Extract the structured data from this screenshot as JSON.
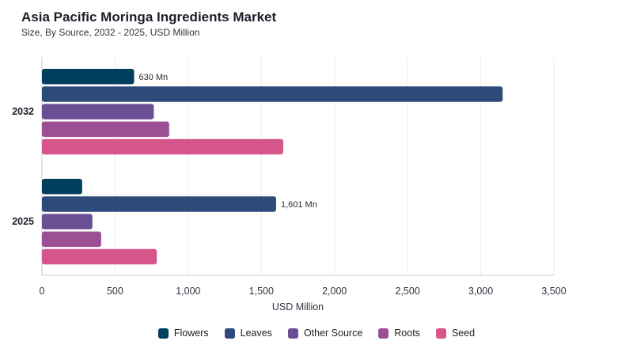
{
  "chart_data": {
    "type": "bar",
    "orientation": "horizontal",
    "title": "Asia Pacific Moringa Ingredients Market",
    "subtitle": "Size, By Source, 2032 - 2025, USD Million",
    "xlabel": "USD Million",
    "ylabel": "",
    "xlim": [
      0,
      3500
    ],
    "xticks": [
      "0",
      "500",
      "1,000",
      "1,500",
      "2,000",
      "2,500",
      "3,000",
      "3,500"
    ],
    "grid": true,
    "legend_position": "bottom",
    "categories": [
      "2032",
      "2025"
    ],
    "series": [
      {
        "name": "Flowers",
        "color": "#013f5e",
        "values": [
          630,
          275
        ],
        "labels": [
          "630 Mn",
          ""
        ]
      },
      {
        "name": "Leaves",
        "color": "#2d4a7a",
        "values": [
          3150,
          1601
        ],
        "labels": [
          "",
          "1,601 Mn"
        ]
      },
      {
        "name": "Other Source",
        "color": "#6a4f94",
        "values": [
          765,
          345
        ],
        "labels": [
          "",
          ""
        ]
      },
      {
        "name": "Roots",
        "color": "#9b4f94",
        "values": [
          870,
          405
        ],
        "labels": [
          "",
          ""
        ]
      },
      {
        "name": "Seed",
        "color": "#d6558a",
        "values": [
          1650,
          785
        ],
        "labels": [
          "",
          ""
        ]
      }
    ]
  }
}
